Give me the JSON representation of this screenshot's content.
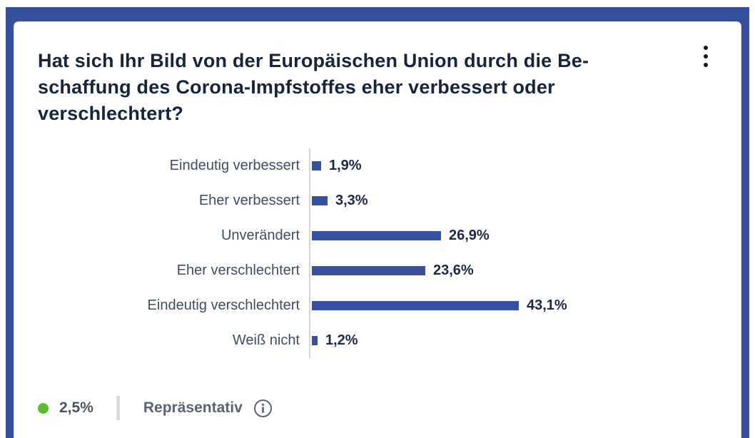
{
  "card": {
    "title_lines": {
      "0": "Hat sich Ihr Bild von der Europäischen Union durch die Be-",
      "1": "schaffung des Corona-Impfstoffes eher verbessert oder",
      "2": "verschlechtert?"
    },
    "title_full": "Hat sich Ihr Bild von der Europäischen Union durch die Beschaffung des Corona-Impfstoffes eher verbessert oder verschlechtert?",
    "menu_icon": "kebab-menu"
  },
  "chart_data": {
    "type": "bar",
    "orientation": "horizontal",
    "title": "Hat sich Ihr Bild von der Europäischen Union durch die Beschaffung des Corona-Impfstoffes eher verbessert oder verschlechtert?",
    "categories": [
      "Eindeutig verbessert",
      "Eher verbessert",
      "Unverändert",
      "Eher verschlechtert",
      "Eindeutig verschlechtert",
      "Weiß nicht"
    ],
    "values": [
      1.9,
      3.3,
      26.9,
      23.6,
      43.1,
      1.2
    ],
    "value_labels": [
      "1,9%",
      "3,3%",
      "26,9%",
      "23,6%",
      "43,1%",
      "1,2%"
    ],
    "xlim": [
      0,
      45
    ],
    "grid": false,
    "bar_color": "#35519f",
    "axis_color": "#d6d6d6"
  },
  "footer": {
    "error_margin": "2,5%",
    "error_margin_dot_color": "#5bba2f",
    "representative_label": "Repräsentativ",
    "info_icon": "info-circle"
  },
  "colors": {
    "frame_blue": "#35509e",
    "title_text": "#16253c",
    "category_text": "#3f4d61",
    "value_text": "#1c2940"
  }
}
